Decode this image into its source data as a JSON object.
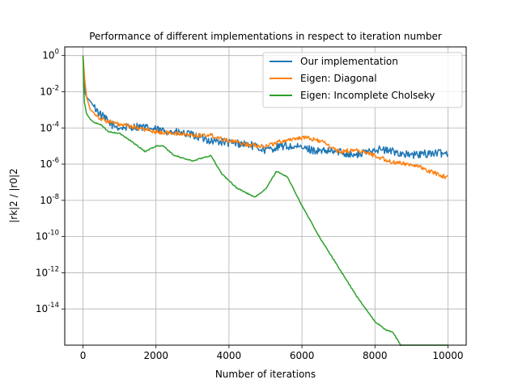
{
  "chart_data": {
    "type": "line",
    "title": "Performance of different implementations in respect to iteration number",
    "xlabel": "Number of iterations",
    "ylabel": "|rk|2 / |r0|2",
    "xlim": [
      -500,
      10500
    ],
    "ylim": [
      1e-16,
      3
    ],
    "y_scale": "log",
    "grid": true,
    "legend_position": "top-right",
    "x_ticks": [
      0,
      2000,
      4000,
      6000,
      8000,
      10000
    ],
    "y_ticks": [
      {
        "value": 1,
        "base": "10",
        "exp": "0"
      },
      {
        "value": 0.01,
        "base": "10",
        "exp": "-2"
      },
      {
        "value": 0.0001,
        "base": "10",
        "exp": "-4"
      },
      {
        "value": 1e-06,
        "base": "10",
        "exp": "-6"
      },
      {
        "value": 1e-08,
        "base": "10",
        "exp": "-8"
      },
      {
        "value": 1e-10,
        "base": "10",
        "exp": "-10"
      },
      {
        "value": 1e-12,
        "base": "10",
        "exp": "-12"
      },
      {
        "value": 1e-14,
        "base": "10",
        "exp": "-14"
      }
    ],
    "series": [
      {
        "name": "Our implementation",
        "color": "#1f77b4",
        "x": [
          0,
          50,
          100,
          200,
          300,
          500,
          800,
          1000,
          1500,
          2000,
          2500,
          3000,
          3500,
          4000,
          4500,
          5000,
          5500,
          6000,
          6500,
          7000,
          7500,
          8000,
          8500,
          9000,
          9500,
          10000
        ],
        "y": [
          1,
          0.01,
          0.005,
          0.003,
          0.0015,
          0.0005,
          0.00015,
          0.0001,
          0.00012,
          8e-05,
          6e-05,
          4e-05,
          2e-05,
          1.5e-05,
          1.3e-05,
          6e-06,
          1e-05,
          8e-06,
          5e-06,
          5e-06,
          3e-06,
          7e-06,
          5e-06,
          3e-06,
          4e-06,
          4e-06
        ]
      },
      {
        "name": "Eigen: Diagonal",
        "color": "#ff7f0e",
        "x": [
          0,
          50,
          100,
          200,
          300,
          500,
          800,
          1000,
          1500,
          2000,
          2500,
          3000,
          3500,
          4000,
          4500,
          5000,
          5500,
          6000,
          6500,
          7000,
          7500,
          8000,
          8500,
          9000,
          9500,
          10000
        ],
        "y": [
          1,
          0.04,
          0.005,
          0.001,
          0.0007,
          0.0003,
          0.0002,
          0.00015,
          0.0001,
          6e-05,
          5e-05,
          4e-05,
          4e-05,
          2e-05,
          1.2e-05,
          1e-05,
          2e-05,
          3e-05,
          2e-05,
          5e-06,
          6e-06,
          3e-06,
          1.2e-06,
          1e-06,
          4e-07,
          1.8e-07
        ]
      },
      {
        "name": "Eigen: Incomplete Cholseky",
        "color": "#2ca02c",
        "x": [
          0,
          30,
          100,
          200,
          300,
          500,
          700,
          1000,
          1300,
          1700,
          2000,
          2200,
          2500,
          3000,
          3200,
          3500,
          3800,
          4200,
          4700,
          5000,
          5300,
          5600,
          6000,
          6500,
          7000,
          7500,
          8000,
          8300,
          8500,
          8700,
          10000
        ],
        "y": [
          1,
          0.003,
          0.0006,
          0.0003,
          0.0002,
          0.00015,
          6e-05,
          5e-05,
          2e-05,
          5e-06,
          1e-05,
          1e-05,
          3e-06,
          1.5e-06,
          2e-06,
          3e-06,
          3e-07,
          5e-08,
          1.5e-08,
          4e-08,
          4e-07,
          2e-07,
          5e-09,
          8e-11,
          2e-12,
          5e-14,
          2e-15,
          7e-16,
          5e-16,
          1e-16,
          1e-16
        ]
      }
    ]
  }
}
